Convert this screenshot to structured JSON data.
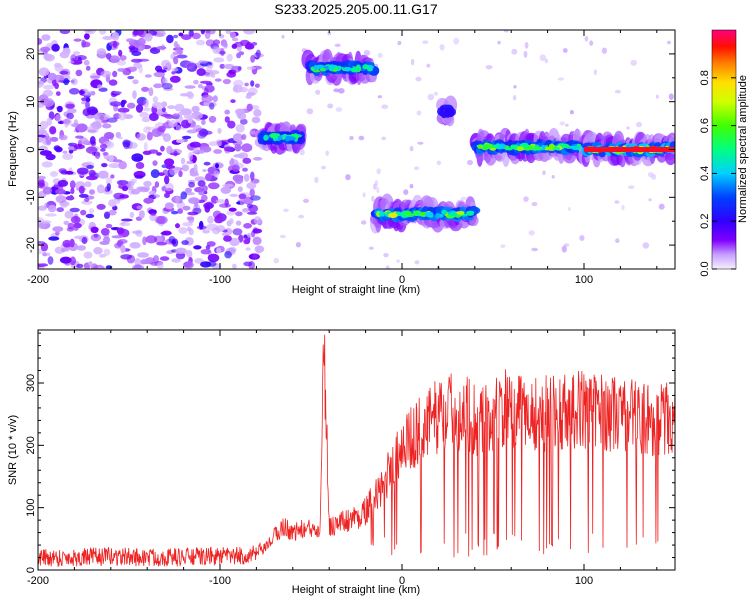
{
  "title": "S233.2025.205.00.11.G17",
  "chart_data": [
    {
      "type": "heatmap",
      "xlabel": "Height of straight line (km)",
      "ylabel": "Frequency (Hz)",
      "xlim": [
        -200,
        150
      ],
      "ylim": [
        -25,
        25
      ],
      "x_ticks": [
        -200,
        -100,
        0,
        100
      ],
      "y_ticks": [
        -20,
        -10,
        0,
        10,
        20
      ],
      "colorbar": {
        "label": "Normalized spectral amplitude",
        "range": [
          0,
          1
        ],
        "ticks": [
          0.0,
          0.2,
          0.4,
          0.6,
          0.8
        ],
        "colormap": [
          "#f5f0ff",
          "#a060f0",
          "#6000ff",
          "#0000ff",
          "#00c8ff",
          "#00ff80",
          "#40ff00",
          "#c8ff00",
          "#ffff00",
          "#ff8000",
          "#ff0000",
          "#ff0080"
        ]
      },
      "background_noise": {
        "x_range": [
          -200,
          -78
        ],
        "y_range": [
          -25,
          25
        ],
        "amplitude": 0.15
      },
      "ridges": [
        {
          "x_range": [
            -78,
            -55
          ],
          "frequency": 2.5,
          "peak_amplitude": 0.55
        },
        {
          "x_range": [
            -52,
            -15
          ],
          "frequency": 17,
          "peak_amplitude": 0.6
        },
        {
          "x_range": [
            -15,
            40
          ],
          "frequency": -13.5,
          "peak_amplitude": 0.75
        },
        {
          "x_range": [
            40,
            100
          ],
          "frequency": 0.5,
          "peak_amplitude": 0.7
        },
        {
          "x_range": [
            100,
            150
          ],
          "frequency": 0,
          "peak_amplitude": 0.95
        },
        {
          "x_range": [
            22,
            27
          ],
          "frequency": 8,
          "peak_amplitude": 0.3
        }
      ]
    },
    {
      "type": "line",
      "xlabel": "Height of straight line (km)",
      "ylabel": "SNR (10 * v/v)",
      "xlim": [
        -200,
        150
      ],
      "ylim": [
        0,
        385
      ],
      "x_ticks": [
        -200,
        -100,
        0,
        100
      ],
      "y_ticks": [
        0,
        100,
        200,
        300
      ],
      "color": "#ee2222",
      "series": [
        {
          "x": [
            -200,
            -180,
            -160,
            -140,
            -120,
            -100,
            -90,
            -80,
            -75,
            -70,
            -65,
            -60,
            -55,
            -50,
            -45,
            -43,
            -40,
            -35,
            -30,
            -25,
            -20,
            -15,
            -10,
            -5,
            0,
            5,
            10,
            15,
            20,
            25,
            30,
            35,
            40,
            45,
            50,
            55,
            60,
            65,
            70,
            75,
            80,
            85,
            90,
            95,
            100,
            110,
            120,
            130,
            140,
            150
          ],
          "y": [
            20,
            20,
            22,
            20,
            21,
            22,
            22,
            25,
            35,
            55,
            70,
            60,
            65,
            65,
            70,
            385,
            70,
            75,
            80,
            85,
            95,
            115,
            140,
            170,
            200,
            210,
            225,
            235,
            250,
            255,
            255,
            250,
            245,
            240,
            245,
            260,
            255,
            250,
            255,
            250,
            250,
            260,
            255,
            255,
            260,
            255,
            250,
            245,
            240,
            245
          ]
        }
      ]
    }
  ]
}
